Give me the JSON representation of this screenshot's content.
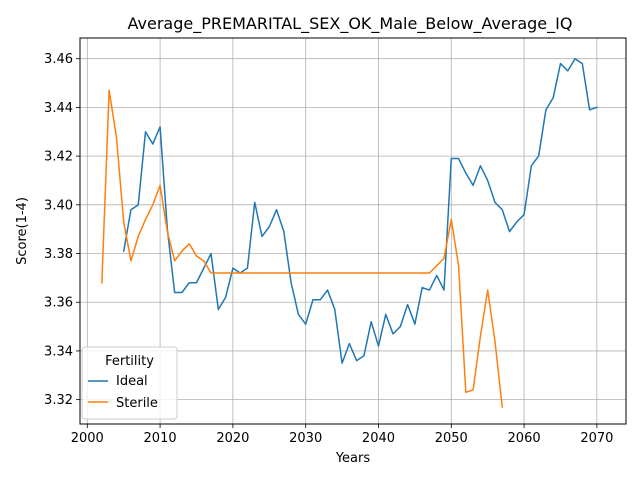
{
  "chart_data": {
    "type": "line",
    "title": "Average_PREMARITAL_SEX_OK_Male_Below_Average_IQ",
    "xlabel": "Years",
    "ylabel": "Score(1-4)",
    "xlim": [
      1999,
      2074
    ],
    "ylim": [
      3.31,
      3.4685
    ],
    "xticks": [
      2000,
      2010,
      2020,
      2030,
      2040,
      2050,
      2060,
      2070
    ],
    "yticks": [
      3.32,
      3.34,
      3.36,
      3.38,
      3.4,
      3.42,
      3.44,
      3.46
    ],
    "ytick_labels": [
      "3.32",
      "3.34",
      "3.36",
      "3.38",
      "3.40",
      "3.42",
      "3.44",
      "3.46"
    ],
    "grid": true,
    "legend": {
      "title": "Fertility",
      "position": "lower-left"
    },
    "series": [
      {
        "name": "Ideal",
        "color": "#1f77b4",
        "x": [
          2005,
          2006,
          2007,
          2008,
          2009,
          2010,
          2011,
          2012,
          2013,
          2014,
          2015,
          2016,
          2017,
          2018,
          2019,
          2020,
          2021,
          2022,
          2023,
          2024,
          2025,
          2026,
          2027,
          2028,
          2029,
          2030,
          2031,
          2032,
          2033,
          2034,
          2035,
          2036,
          2037,
          2038,
          2039,
          2040,
          2041,
          2042,
          2043,
          2044,
          2045,
          2046,
          2047,
          2048,
          2049,
          2050,
          2051,
          2052,
          2053,
          2054,
          2055,
          2056,
          2057,
          2058,
          2059,
          2060,
          2061,
          2062,
          2063,
          2064,
          2065,
          2066,
          2067,
          2068,
          2069,
          2070
        ],
        "y": [
          3.381,
          3.398,
          3.4,
          3.43,
          3.425,
          3.432,
          3.39,
          3.364,
          3.364,
          3.368,
          3.368,
          3.374,
          3.38,
          3.357,
          3.362,
          3.374,
          3.372,
          3.374,
          3.401,
          3.387,
          3.391,
          3.398,
          3.389,
          3.368,
          3.355,
          3.351,
          3.361,
          3.361,
          3.365,
          3.357,
          3.335,
          3.343,
          3.336,
          3.338,
          3.352,
          3.342,
          3.355,
          3.347,
          3.35,
          3.359,
          3.351,
          3.366,
          3.365,
          3.371,
          3.365,
          3.419,
          3.419,
          3.413,
          3.408,
          3.416,
          3.41,
          3.401,
          3.398,
          3.389,
          3.393,
          3.396,
          3.416,
          3.42,
          3.439,
          3.444,
          3.458,
          3.455,
          3.46,
          3.458,
          3.439,
          3.44
        ]
      },
      {
        "name": "Sterile",
        "color": "#ff7f0e",
        "x": [
          2002,
          2003,
          2004,
          2005,
          2006,
          2007,
          2008,
          2009,
          2010,
          2011,
          2012,
          2013,
          2014,
          2015,
          2016,
          2017,
          2018,
          2019,
          2020,
          2021,
          2022,
          2023,
          2024,
          2025,
          2026,
          2027,
          2028,
          2029,
          2030,
          2031,
          2032,
          2033,
          2034,
          2035,
          2036,
          2037,
          2038,
          2039,
          2040,
          2041,
          2042,
          2043,
          2044,
          2045,
          2046,
          2047,
          2048,
          2049,
          2050,
          2051,
          2052,
          2053,
          2054,
          2055,
          2056,
          2057
        ],
        "y": [
          3.368,
          3.447,
          3.428,
          3.393,
          3.377,
          3.387,
          3.394,
          3.4,
          3.408,
          3.389,
          3.377,
          3.381,
          3.384,
          3.379,
          3.377,
          3.372,
          3.372,
          3.372,
          3.372,
          3.372,
          3.372,
          3.372,
          3.372,
          3.372,
          3.372,
          3.372,
          3.372,
          3.372,
          3.372,
          3.372,
          3.372,
          3.372,
          3.372,
          3.372,
          3.372,
          3.372,
          3.372,
          3.372,
          3.372,
          3.372,
          3.372,
          3.372,
          3.372,
          3.372,
          3.372,
          3.372,
          3.375,
          3.378,
          3.394,
          3.375,
          3.323,
          3.324,
          3.346,
          3.365,
          3.344,
          3.317
        ]
      }
    ]
  }
}
